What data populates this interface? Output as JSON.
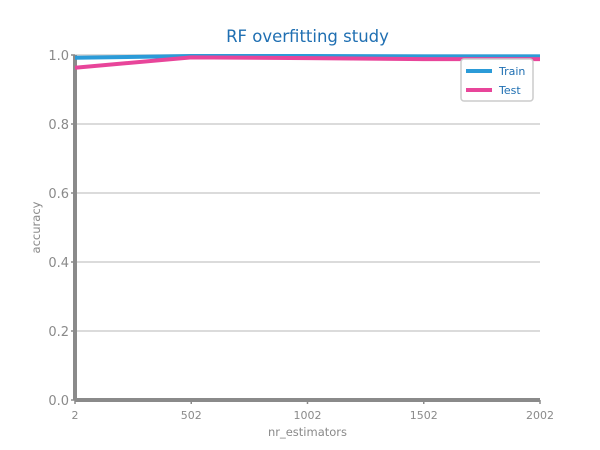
{
  "chart_data": {
    "type": "line",
    "title": "RF overfitting study",
    "xlabel": "nr_estimators",
    "ylabel": "accuracy",
    "x": [
      2,
      502,
      1002,
      1502,
      2002
    ],
    "xticks": [
      "2",
      "502",
      "1002",
      "1502",
      "2002"
    ],
    "yticks": [
      "0.0",
      "0.2",
      "0.4",
      "0.6",
      "0.8",
      "1.0"
    ],
    "xlim": [
      2,
      2002
    ],
    "ylim": [
      0,
      1
    ],
    "grid": "horizontal",
    "legend_position": "top-right",
    "series": [
      {
        "name": "Train",
        "values": [
          0.992,
          0.997,
          0.997,
          0.996,
          0.996
        ],
        "color": "#2b9bd8"
      },
      {
        "name": "Test",
        "values": [
          0.963,
          0.993,
          0.991,
          0.988,
          0.988
        ],
        "color": "#e8459a"
      }
    ],
    "colors": {
      "title": "#1f6fb2",
      "axis": "#8a8a8a",
      "grid": "#cfcfcf",
      "text": "#8a8a8a"
    }
  }
}
